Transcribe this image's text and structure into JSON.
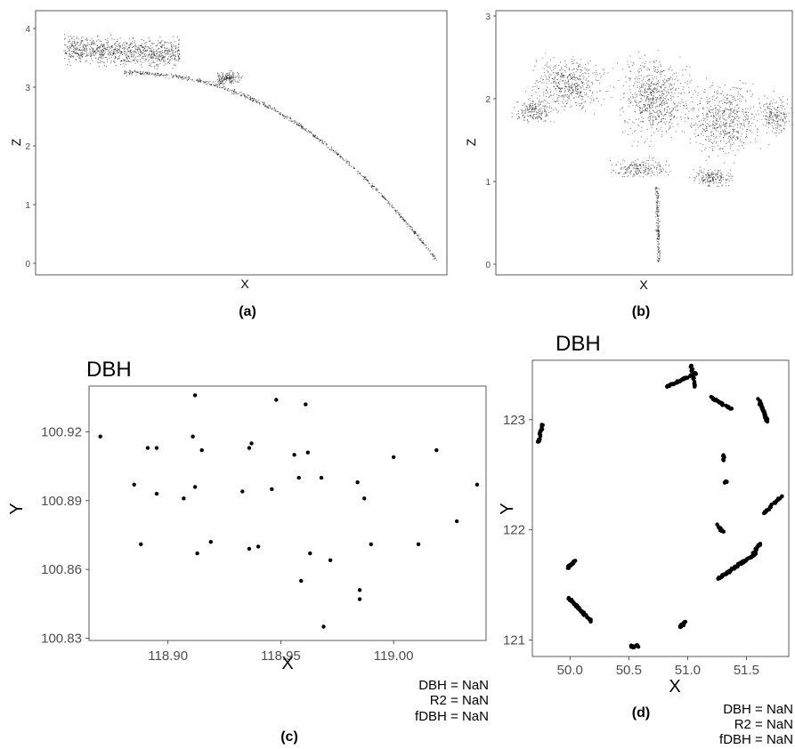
{
  "captions": {
    "a": "(a)",
    "b": "(b)",
    "c": "(c)",
    "d": "(d)"
  },
  "colors": {
    "point": "#000000",
    "frame": "#333333",
    "tick_text": "#4d4d4d",
    "background": "#ffffff"
  },
  "chart_data": [
    {
      "type": "scatter",
      "panel": "a",
      "xlabel": "X",
      "ylabel": "Z",
      "ylim": [
        0,
        4.1
      ],
      "y_ticks": [
        "0",
        "1",
        "2",
        "3",
        "4"
      ],
      "x_ticks": [],
      "grid": false,
      "description_shape": "leaning stem"
    },
    {
      "type": "scatter",
      "panel": "b",
      "xlabel": "X",
      "ylabel": "Z",
      "ylim": [
        0,
        3
      ],
      "y_ticks": [
        "0",
        "1",
        "2",
        "3"
      ],
      "x_ticks": [],
      "grid": false,
      "description_shape": "tree crown"
    },
    {
      "type": "scatter",
      "panel": "c",
      "title": "DBH",
      "xlabel": "X",
      "ylabel": "Y",
      "xlim": [
        118.865,
        119.041
      ],
      "ylim": [
        100.829,
        100.94
      ],
      "x_ticks": [
        "118.90",
        "118.95",
        "119.00"
      ],
      "y_ticks": [
        "100.83",
        "100.86",
        "100.89",
        "100.92"
      ],
      "grid": false,
      "points": [
        [
          118.87,
          100.918
        ],
        [
          118.885,
          100.897
        ],
        [
          118.888,
          100.871
        ],
        [
          118.891,
          100.913
        ],
        [
          118.895,
          100.913
        ],
        [
          118.895,
          100.893
        ],
        [
          118.907,
          100.891
        ],
        [
          118.911,
          100.918
        ],
        [
          118.912,
          100.936
        ],
        [
          118.912,
          100.896
        ],
        [
          118.913,
          100.867
        ],
        [
          118.915,
          100.912
        ],
        [
          118.919,
          100.872
        ],
        [
          118.933,
          100.894
        ],
        [
          118.936,
          100.869
        ],
        [
          118.936,
          100.913
        ],
        [
          118.937,
          100.915
        ],
        [
          118.94,
          100.87
        ],
        [
          118.946,
          100.895
        ],
        [
          118.948,
          100.934
        ],
        [
          118.956,
          100.91
        ],
        [
          118.958,
          100.9
        ],
        [
          118.959,
          100.855
        ],
        [
          118.961,
          100.932
        ],
        [
          118.962,
          100.911
        ],
        [
          118.963,
          100.867
        ],
        [
          118.968,
          100.9
        ],
        [
          118.969,
          100.835
        ],
        [
          118.972,
          100.864
        ],
        [
          118.984,
          100.898
        ],
        [
          118.985,
          100.847
        ],
        [
          118.985,
          100.851
        ],
        [
          118.987,
          100.891
        ],
        [
          118.99,
          100.871
        ],
        [
          119.0,
          100.909
        ],
        [
          119.011,
          100.871
        ],
        [
          119.019,
          100.912
        ],
        [
          119.028,
          100.881
        ],
        [
          119.037,
          100.897
        ]
      ],
      "stats": {
        "dbh": "DBH = NaN",
        "r2": "R2 = NaN",
        "fdbh": "fDBH = NaN"
      }
    },
    {
      "type": "scatter",
      "panel": "d",
      "title": "DBH",
      "xlabel": "X",
      "ylabel": "Y",
      "xlim": [
        49.68,
        51.86
      ],
      "ylim": [
        120.85,
        123.54
      ],
      "x_ticks": [
        "50.0",
        "50.5",
        "51.0",
        "51.5"
      ],
      "y_ticks": [
        "121",
        "122",
        "123"
      ],
      "grid": false,
      "clusters": [
        {
          "x0": 49.73,
          "y0": 122.8,
          "x1": 49.77,
          "y1": 122.97,
          "n": 22
        },
        {
          "x0": 49.98,
          "y0": 121.65,
          "x1": 50.04,
          "y1": 121.72,
          "n": 30
        },
        {
          "x0": 49.99,
          "y0": 121.38,
          "x1": 50.18,
          "y1": 121.17,
          "n": 70
        },
        {
          "x0": 50.52,
          "y0": 120.94,
          "x1": 50.58,
          "y1": 120.95,
          "n": 12
        },
        {
          "x0": 50.94,
          "y0": 121.12,
          "x1": 50.98,
          "y1": 121.16,
          "n": 16
        },
        {
          "x0": 50.82,
          "y0": 123.3,
          "x1": 51.07,
          "y1": 123.42,
          "n": 45
        },
        {
          "x0": 51.03,
          "y0": 123.5,
          "x1": 51.06,
          "y1": 123.3,
          "n": 20
        },
        {
          "x0": 51.2,
          "y0": 123.2,
          "x1": 51.37,
          "y1": 123.1,
          "n": 35
        },
        {
          "x0": 51.6,
          "y0": 123.2,
          "x1": 51.68,
          "y1": 122.98,
          "n": 50
        },
        {
          "x0": 51.25,
          "y0": 122.05,
          "x1": 51.3,
          "y1": 121.98,
          "n": 18
        },
        {
          "x0": 51.3,
          "y0": 122.68,
          "x1": 51.31,
          "y1": 122.63,
          "n": 8
        },
        {
          "x0": 51.31,
          "y0": 122.44,
          "x1": 51.34,
          "y1": 122.44,
          "n": 8
        },
        {
          "x0": 51.65,
          "y0": 122.15,
          "x1": 51.8,
          "y1": 122.31,
          "n": 28
        },
        {
          "x0": 51.25,
          "y0": 121.55,
          "x1": 51.6,
          "y1": 121.8,
          "n": 90
        },
        {
          "x0": 51.55,
          "y0": 121.78,
          "x1": 51.62,
          "y1": 121.88,
          "n": 14
        }
      ],
      "stats": {
        "dbh": "DBH = NaN",
        "r2": "R2 = NaN",
        "fdbh": "fDBH = NaN"
      }
    }
  ]
}
